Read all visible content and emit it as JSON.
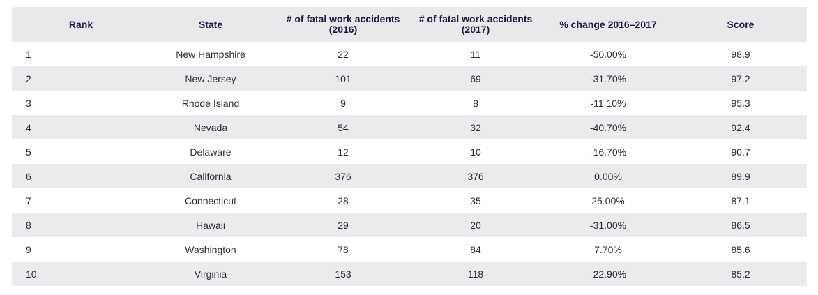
{
  "table": {
    "headers": {
      "rank": "Rank",
      "state": "State",
      "fatal_2016": "# of fatal work accidents (2016)",
      "fatal_2017": "# of fatal work accidents (2017)",
      "pct_change": "% change 2016–2017",
      "score": "Score"
    },
    "rows": [
      {
        "rank": "1",
        "state": "New Hampshire",
        "fatal_2016": "22",
        "fatal_2017": "11",
        "pct_change": "-50.00%",
        "score": "98.9"
      },
      {
        "rank": "2",
        "state": "New Jersey",
        "fatal_2016": "101",
        "fatal_2017": "69",
        "pct_change": "-31.70%",
        "score": "97.2"
      },
      {
        "rank": "3",
        "state": "Rhode Island",
        "fatal_2016": "9",
        "fatal_2017": "8",
        "pct_change": "-11.10%",
        "score": "95.3"
      },
      {
        "rank": "4",
        "state": "Nevada",
        "fatal_2016": "54",
        "fatal_2017": "32",
        "pct_change": "-40.70%",
        "score": "92.4"
      },
      {
        "rank": "5",
        "state": "Delaware",
        "fatal_2016": "12",
        "fatal_2017": "10",
        "pct_change": "-16.70%",
        "score": "90.7"
      },
      {
        "rank": "6",
        "state": "California",
        "fatal_2016": "376",
        "fatal_2017": "376",
        "pct_change": "0.00%",
        "score": "89.9"
      },
      {
        "rank": "7",
        "state": "Connecticut",
        "fatal_2016": "28",
        "fatal_2017": "35",
        "pct_change": "25.00%",
        "score": "87.1"
      },
      {
        "rank": "8",
        "state": "Hawaii",
        "fatal_2016": "29",
        "fatal_2017": "20",
        "pct_change": "-31.00%",
        "score": "86.5"
      },
      {
        "rank": "9",
        "state": "Washington",
        "fatal_2016": "78",
        "fatal_2017": "84",
        "pct_change": "7.70%",
        "score": "85.6"
      },
      {
        "rank": "10",
        "state": "Virginia",
        "fatal_2016": "153",
        "fatal_2017": "118",
        "pct_change": "-22.90%",
        "score": "85.2"
      }
    ]
  }
}
